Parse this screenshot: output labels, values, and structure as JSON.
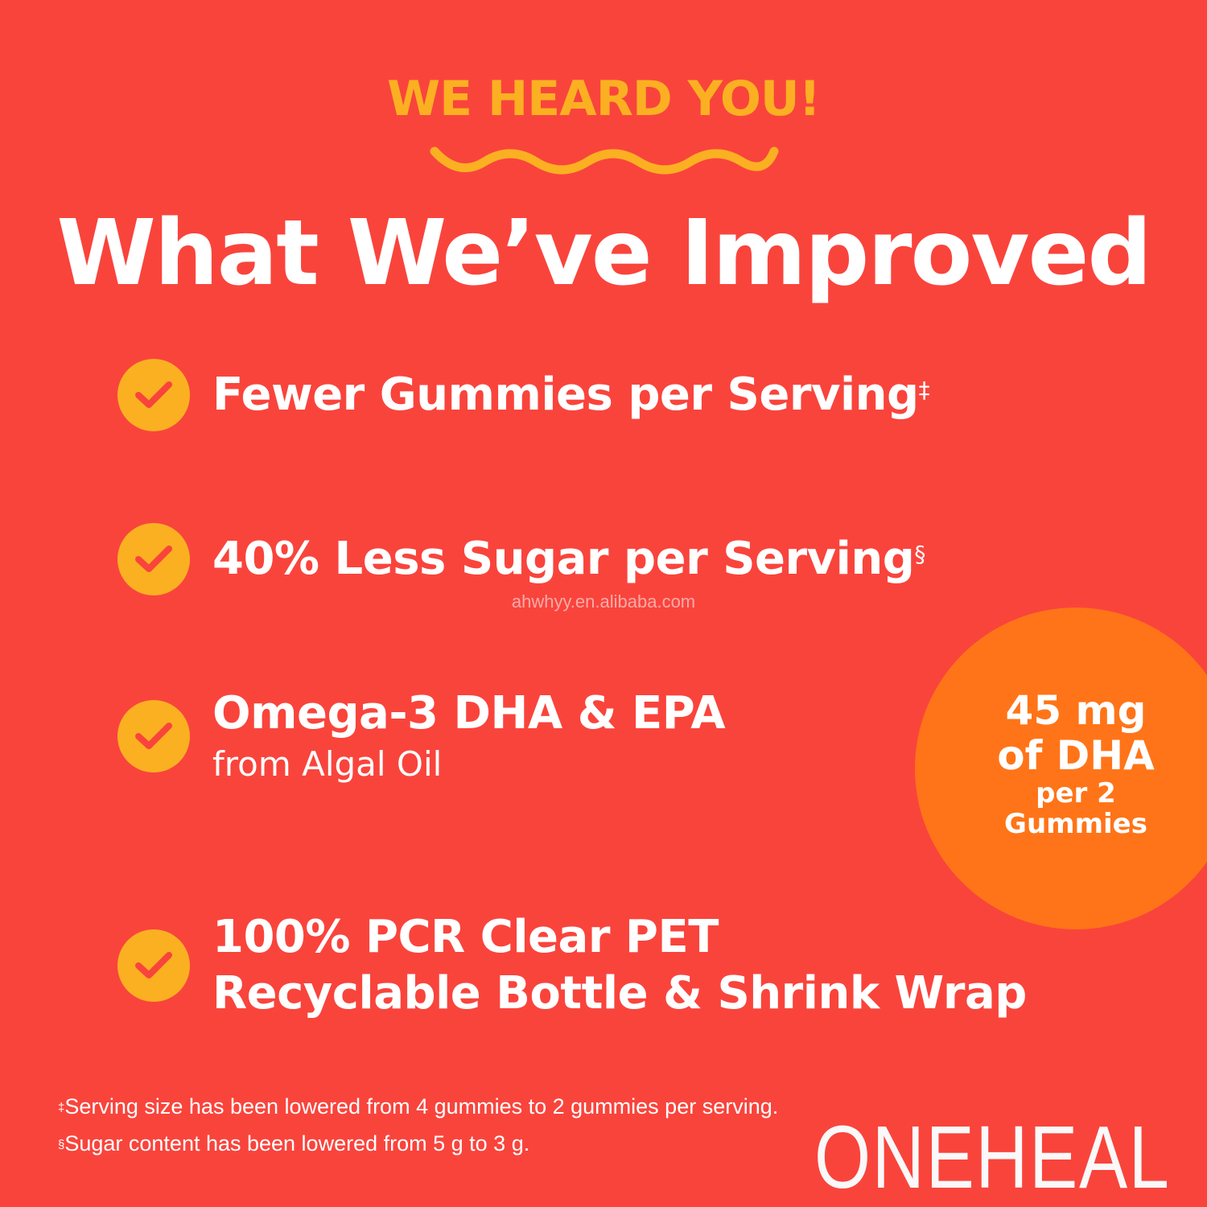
{
  "header": {
    "eyebrow": "WE HEARD YOU!",
    "title": "What We’ve Improved"
  },
  "colors": {
    "background": "#F9443C",
    "accent_yellow": "#FBB022",
    "badge_orange": "#FF7418"
  },
  "features": [
    {
      "icon": "check-circle-icon",
      "text": "Fewer Gummies per Serving",
      "mark": "‡"
    },
    {
      "icon": "check-circle-icon",
      "text": "40% Less Sugar per Serving",
      "mark": "§"
    },
    {
      "icon": "check-circle-icon",
      "text": "Omega-3 DHA & EPA",
      "sub": "from Algal Oil"
    },
    {
      "icon": "check-circle-icon",
      "text": "100% PCR Clear PET",
      "text2": "Recyclable Bottle & Shrink Wrap"
    }
  ],
  "badge": {
    "line1": "45 mg",
    "line2": "of DHA",
    "line3": "per 2",
    "line4": "Gummies"
  },
  "watermark": "ahwhyy.en.alibaba.com",
  "footnotes": [
    {
      "mark": "‡",
      "text": "Serving size has been lowered from 4 gummies to 2 gummies per serving."
    },
    {
      "mark": "§",
      "text": "Sugar content has been lowered from 5 g to 3 g."
    }
  ],
  "brand": {
    "logo_text": "ONEHEAL"
  }
}
